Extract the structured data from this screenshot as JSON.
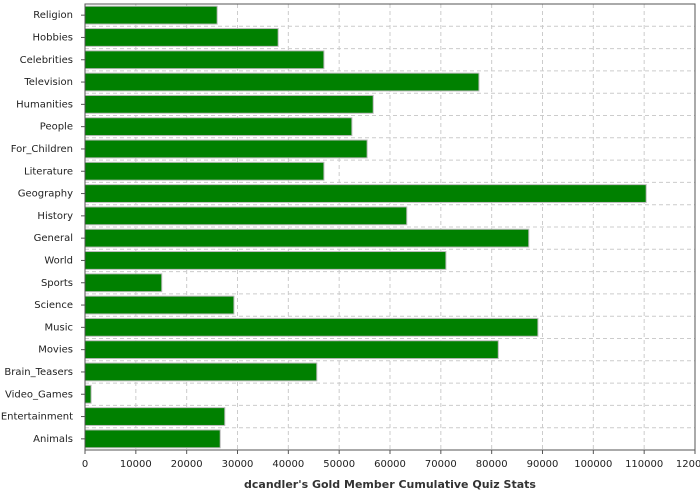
{
  "chart_data": {
    "type": "barh",
    "title": "dcandler's Gold Member Cumulative Quiz Stats",
    "categories": [
      "Religion",
      "Hobbies",
      "Celebrities",
      "Television",
      "Humanities",
      "People",
      "For_Children",
      "Literature",
      "Geography",
      "History",
      "General",
      "World",
      "Sports",
      "Science",
      "Music",
      "Movies",
      "Brain_Teasers",
      "Video_Games",
      "Entertainment",
      "Animals"
    ],
    "values": [
      26000,
      38000,
      47000,
      77500,
      56700,
      52500,
      55500,
      47000,
      110400,
      63300,
      87300,
      71000,
      15100,
      29300,
      89100,
      81300,
      45600,
      1200,
      27500,
      26600
    ],
    "color": "#008000",
    "xlim": [
      0,
      120000
    ],
    "xticks": [
      0,
      10000,
      20000,
      30000,
      40000,
      50000,
      60000,
      70000,
      80000,
      90000,
      100000,
      110000,
      120000
    ],
    "grid": true
  }
}
